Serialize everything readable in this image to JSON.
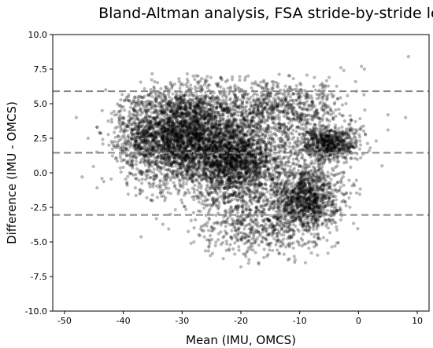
{
  "chart_data": {
    "type": "scatter",
    "title": "Bland-Altman analysis, FSA stride-by-stride level",
    "xlabel": "Mean (IMU, OMCS)",
    "ylabel": "Difference (IMU - OMCS)",
    "xlim": [
      -52,
      12
    ],
    "ylim": [
      -10,
      10
    ],
    "x_ticks": [
      -50,
      -40,
      -30,
      -20,
      -10,
      0,
      10
    ],
    "x_tick_labels": [
      "-50",
      "-40",
      "-30",
      "-20",
      "-10",
      "0",
      "10"
    ],
    "y_ticks": [
      -10,
      -7.5,
      -5,
      -2.5,
      0,
      2.5,
      5,
      7.5,
      10
    ],
    "y_tick_labels": [
      "-10.0",
      "-7.5",
      "-5.0",
      "-2.5",
      "0.0",
      "2.5",
      "5.0",
      "7.5",
      "10.0"
    ],
    "grid": false,
    "reference_lines": [
      {
        "type": "upper_limit_of_agreement",
        "y": 5.9
      },
      {
        "type": "mean_difference",
        "y": 1.45
      },
      {
        "type": "lower_limit_of_agreement",
        "y": -3.05
      }
    ],
    "point_color": "#000000",
    "point_opacity": 0.28,
    "line_color": "#888888",
    "clusters": [
      {
        "cx": -30,
        "cy": 2.5,
        "sx": 4.5,
        "sy": 1.7,
        "n": 2600
      },
      {
        "cx": -21,
        "cy": 0.8,
        "sx": 3.5,
        "sy": 1.4,
        "n": 1700
      },
      {
        "cx": -9,
        "cy": -1.8,
        "sx": 2.8,
        "sy": 1.2,
        "n": 1100
      },
      {
        "cx": -5,
        "cy": 2.1,
        "sx": 2.5,
        "sy": 0.6,
        "n": 650
      },
      {
        "cx": -12,
        "cy": 4.7,
        "sx": 5.0,
        "sy": 0.9,
        "n": 500
      },
      {
        "cx": -17,
        "cy": -3.8,
        "sx": 5.0,
        "sy": 1.2,
        "n": 550
      },
      {
        "cx": -25,
        "cy": 4.5,
        "sx": 6.0,
        "sy": 1.3,
        "n": 500
      },
      {
        "cx": -37,
        "cy": 2.8,
        "sx": 2.5,
        "sy": 1.5,
        "n": 320
      },
      {
        "cx": -14,
        "cy": 1.5,
        "sx": 7.0,
        "sy": 2.5,
        "n": 700
      }
    ],
    "outliers": [
      [
        -48,
        4.0
      ],
      [
        -46,
        2.5
      ],
      [
        -44.5,
        3.3
      ],
      [
        -44.5,
        1.5
      ],
      [
        -43,
        6.0
      ],
      [
        -47,
        -0.3
      ],
      [
        -42,
        4.3
      ],
      [
        -40,
        0.4
      ],
      [
        -41,
        2.0
      ],
      [
        8.5,
        8.4
      ],
      [
        5,
        4.2
      ],
      [
        8,
        4.0
      ],
      [
        5,
        3.1
      ],
      [
        4,
        0.5
      ],
      [
        3,
        2.3
      ],
      [
        2,
        1.8
      ],
      [
        0.5,
        7.7
      ],
      [
        1,
        7.5
      ],
      [
        -0.5,
        6.6
      ],
      [
        -2.5,
        7.4
      ],
      [
        -20,
        -6.8
      ],
      [
        -17,
        -6.5
      ],
      [
        -12,
        -6.3
      ],
      [
        -23,
        -6.2
      ],
      [
        -5,
        6.9
      ],
      [
        -7.5,
        6.9
      ],
      [
        -4,
        -5.3
      ],
      [
        -8,
        -5.8
      ],
      [
        -28,
        -5.0
      ],
      [
        -32,
        -3.0
      ],
      [
        -35,
        -2.0
      ],
      [
        -36,
        -1.8
      ],
      [
        -38,
        3.5
      ],
      [
        -40.5,
        3.0
      ],
      [
        -39,
        5.2
      ],
      [
        -3,
        7.6
      ]
    ]
  }
}
